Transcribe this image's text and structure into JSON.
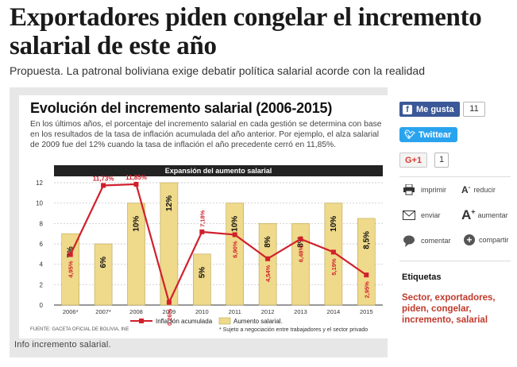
{
  "article": {
    "headline": "Exportadores piden congelar el incremento salarial de este año",
    "subhead": "Propuesta. La patronal boliviana exige debatir política salarial acorde con la realidad",
    "caption": "Info incremento salarial."
  },
  "infographic": {
    "title": "Evolución del incremento salarial (2006-2015)",
    "description": "En los últimos años, el porcentaje del incremento salarial en cada gestión se determina con base en los resultados de la tasa de inflación acumulada del año anterior. Por ejemplo, el alza salarial de 2009 fue del 12% cuando la tasa de inflación el año precedente cerró en 11,85%.",
    "band": "Expansión del aumento salarial",
    "source": "FUENTE: GACETA OFICIAL DE BOLIVIA, INE",
    "legend_inflation": "Inflación acumulada",
    "legend_increase": "Aumento salarial.",
    "footnote": "* Sujeto a negociación entre trabajadores y el sector privado"
  },
  "chart_data": {
    "type": "bar",
    "categories": [
      "2006*",
      "2007*",
      "2008",
      "2009",
      "2010",
      "2011",
      "2012",
      "2013",
      "2014",
      "2015"
    ],
    "ylim": [
      0,
      12
    ],
    "yticks": [
      "0",
      "2",
      "4",
      "6",
      "8",
      "10",
      "12"
    ],
    "series": [
      {
        "name": "Aumento salarial.",
        "values": [
          7,
          6,
          10,
          12,
          5,
          10,
          8,
          8,
          10,
          8.5
        ],
        "labels": [
          "7%",
          "6%",
          "10%",
          "12%",
          "5%",
          "10%",
          "8%",
          "8%",
          "10%",
          "8,5%"
        ],
        "color": "#efd98a"
      },
      {
        "name": "Inflación acumulada",
        "values": [
          4.95,
          11.73,
          11.85,
          0.26,
          7.18,
          6.9,
          4.54,
          6.48,
          5.19,
          2.95
        ],
        "labels": [
          "4,95%",
          "11,73%",
          "11,85%",
          "0,26%",
          "7,18%",
          "6,90%",
          "4,54%",
          "6,48%",
          "5,19%",
          "2,95%"
        ],
        "color": "#d0202c"
      }
    ]
  },
  "social": {
    "facebook_label": "Me gusta",
    "facebook_count": "11",
    "twitter_label": "Twittear",
    "gplus_label": "G+1",
    "gplus_count": "1"
  },
  "tools": {
    "print": "imprimir",
    "reduce": "reducir",
    "send": "enviar",
    "enlarge": "aumentar",
    "comment": "comentar",
    "share": "compartir"
  },
  "tags": {
    "title": "Etiquetas",
    "list": "Sector, exportadores, piden, congelar, incremento, salarial"
  },
  "colors": {
    "bar_fill": "#efd98a",
    "line": "#d0202c",
    "facebook": "#3b5998",
    "twitter": "#2aa3ef",
    "tag_link": "#c0392b"
  }
}
